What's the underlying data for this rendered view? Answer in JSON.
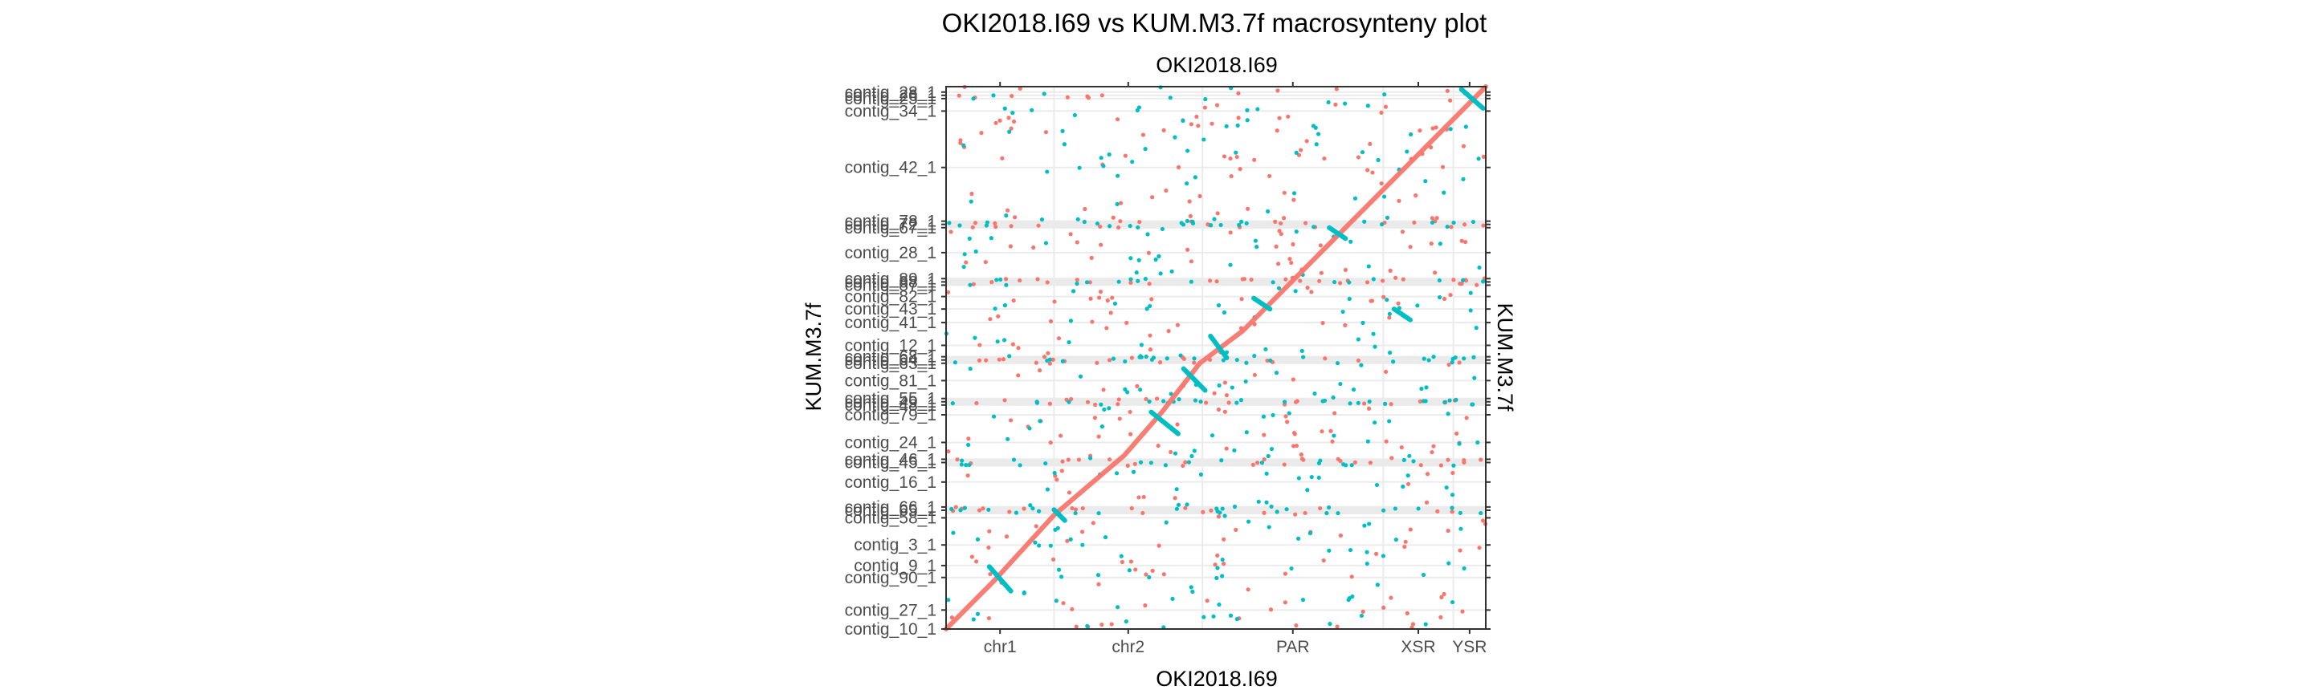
{
  "chart_data": {
    "type": "scatter",
    "title": "OKI2018.I69 vs KUM.M3.7f macrosynteny plot",
    "x_axis": {
      "label_top": "OKI2018.I69",
      "label_bottom": "OKI2018.I69",
      "range": [
        0,
        1
      ],
      "tick_labels": [
        "chr1",
        "chr2",
        "PAR",
        "XSR",
        "YSR"
      ],
      "boundaries": [
        0,
        0.2,
        0.475,
        0.81,
        0.94,
        1.0
      ]
    },
    "y_axis": {
      "label_left": "KUM.M3.7f",
      "label_right": "KUM.M3.7f",
      "range": [
        0,
        1
      ],
      "tick_labels": [
        "contig_28_1",
        "contig_26_1",
        "contig_25_1",
        "contig_34_1",
        "contig_42_1",
        "contig_78_1",
        "contig_72_1",
        "contig_67_1",
        "contig_28_1",
        "contig_89_1",
        "contig_88_1",
        "contig_87_1",
        "contig_82_1",
        "contig_43_1",
        "contig_41_1",
        "contig_12_1",
        "contig_68_1",
        "contig_64_1",
        "contig_63_1",
        "contig_81_1",
        "contig_55_1",
        "contig_49_1",
        "contig_48_1",
        "contig_79_1",
        "contig_24_1",
        "contig_46_1",
        "contig_45_1",
        "contig_16_1",
        "contig_66_1",
        "contig_65_1",
        "contig_58_1",
        "contig_3_1",
        "contig_9_1",
        "contig_90_1",
        "contig_27_1",
        "contig_10_1"
      ],
      "tick_positions": [
        0.99,
        0.984,
        0.978,
        0.955,
        0.851,
        0.752,
        0.746,
        0.74,
        0.694,
        0.646,
        0.64,
        0.634,
        0.613,
        0.59,
        0.565,
        0.523,
        0.502,
        0.496,
        0.49,
        0.458,
        0.425,
        0.419,
        0.413,
        0.395,
        0.344,
        0.313,
        0.307,
        0.271,
        0.225,
        0.219,
        0.205,
        0.155,
        0.117,
        0.095,
        0.035,
        0.0
      ]
    },
    "series": [
      {
        "name": "",
        "color": "#F8766D"
      },
      {
        "name": "",
        "color": "#00BFC4"
      }
    ],
    "diagonal": {
      "x": [
        0.0,
        0.09,
        0.2,
        0.33,
        0.4,
        0.47,
        0.55,
        0.65,
        0.75,
        0.87,
        0.96,
        1.0
      ],
      "y": [
        0.0,
        0.09,
        0.21,
        0.32,
        0.4,
        0.49,
        0.55,
        0.65,
        0.75,
        0.87,
        0.96,
        1.0
      ]
    },
    "blue_blocks": [
      {
        "x": [
          0.08,
          0.12
        ],
        "y": [
          0.115,
          0.07
        ]
      },
      {
        "x": [
          0.2,
          0.22
        ],
        "y": [
          0.22,
          0.2
        ]
      },
      {
        "x": [
          0.38,
          0.43
        ],
        "y": [
          0.4,
          0.36
        ]
      },
      {
        "x": [
          0.44,
          0.48
        ],
        "y": [
          0.48,
          0.44
        ]
      },
      {
        "x": [
          0.49,
          0.52
        ],
        "y": [
          0.54,
          0.5
        ]
      },
      {
        "x": [
          0.57,
          0.6
        ],
        "y": [
          0.61,
          0.59
        ]
      },
      {
        "x": [
          0.71,
          0.74
        ],
        "y": [
          0.74,
          0.72
        ]
      },
      {
        "x": [
          0.83,
          0.86
        ],
        "y": [
          0.59,
          0.57
        ]
      },
      {
        "x": [
          0.955,
          0.995
        ],
        "y": [
          0.995,
          0.96
        ]
      }
    ],
    "shaded_bands": [
      0.746,
      0.64,
      0.496,
      0.419,
      0.307,
      0.219
    ],
    "grid": true,
    "legend": "none"
  }
}
